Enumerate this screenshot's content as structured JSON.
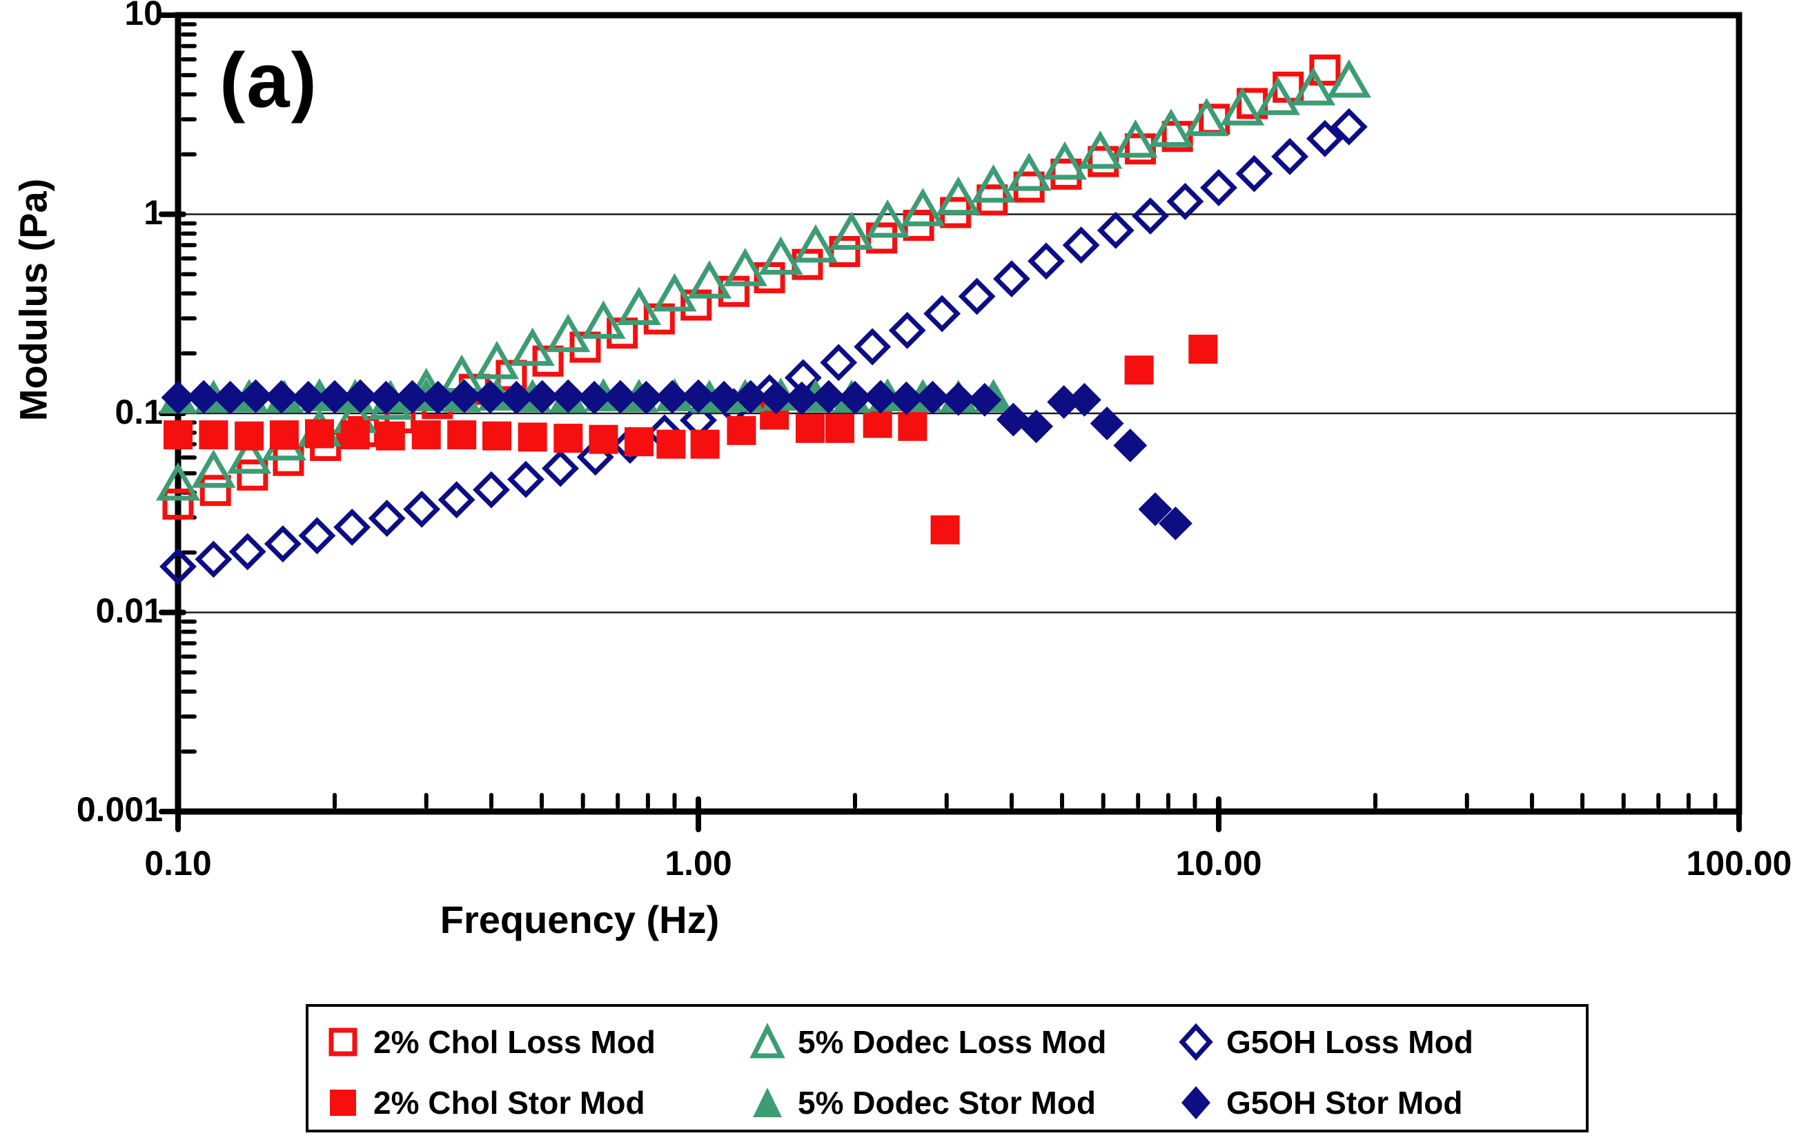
{
  "figure_label": "(a)",
  "colors": {
    "red": "#F50F0F",
    "green": "#3D9C73",
    "navy": "#0D0D84",
    "axis": "#000000",
    "grid": "#1a1a1a",
    "background": "#ffffff"
  },
  "axes": {
    "x": {
      "title": "Frequency (Hz)",
      "scale": "log",
      "min": 0.1,
      "max": 100,
      "tick_labels": [
        "0.10",
        "1.00",
        "10.00",
        "100.00"
      ],
      "tick_values": [
        0.1,
        1,
        10,
        100
      ]
    },
    "y": {
      "title": "Modulus (Pa)",
      "scale": "log",
      "min": 0.001,
      "max": 10,
      "tick_labels": [
        "10",
        "1",
        "0.1",
        "0.01",
        "0.001"
      ],
      "tick_values": [
        10,
        1,
        0.1,
        0.01,
        0.001
      ],
      "gridline_values": [
        1,
        0.1,
        0.01
      ]
    }
  },
  "legend": {
    "items": [
      {
        "label": "2% Chol Loss Mod",
        "marker": "square-open",
        "color": "red"
      },
      {
        "label": "5% Dodec Loss Mod",
        "marker": "triangle-open",
        "color": "green"
      },
      {
        "label": "G5OH Loss Mod",
        "marker": "diamond-open",
        "color": "navy"
      },
      {
        "label": "2% Chol Stor Mod",
        "marker": "square-filled",
        "color": "red"
      },
      {
        "label": "5% Dodec Stor Mod",
        "marker": "triangle-filled",
        "color": "green"
      },
      {
        "label": "G5OH Stor Mod",
        "marker": "diamond-filled",
        "color": "navy"
      }
    ]
  },
  "chart_data": {
    "type": "scatter",
    "title": "(a)",
    "xlabel": "Frequency (Hz)",
    "ylabel": "Modulus (Pa)",
    "xscale": "log",
    "yscale": "log",
    "xlim": [
      0.1,
      100
    ],
    "ylim": [
      0.001,
      10
    ],
    "grid": "horizontal-decades",
    "legend_position": "below",
    "series": [
      {
        "name": "2% Chol Loss Mod",
        "marker": "square",
        "fill": false,
        "color": "red",
        "x": [
          0.1,
          0.118,
          0.139,
          0.163,
          0.192,
          0.227,
          0.267,
          0.315,
          0.371,
          0.437,
          0.514,
          0.606,
          0.714,
          0.841,
          0.99,
          1.17,
          1.37,
          1.62,
          1.91,
          2.25,
          2.65,
          3.12,
          3.67,
          4.32,
          5.09,
          6.0,
          7.07,
          8.33,
          9.81,
          11.6,
          13.6,
          16.0
        ],
        "y": [
          0.035,
          0.041,
          0.049,
          0.058,
          0.069,
          0.081,
          0.095,
          0.112,
          0.132,
          0.155,
          0.183,
          0.215,
          0.253,
          0.298,
          0.35,
          0.41,
          0.48,
          0.56,
          0.65,
          0.76,
          0.88,
          1.02,
          1.18,
          1.37,
          1.59,
          1.84,
          2.13,
          2.46,
          3.0,
          3.6,
          4.35,
          5.3
        ]
      },
      {
        "name": "5% Dodec Loss Mod",
        "marker": "triangle",
        "fill": false,
        "color": "green",
        "x": [
          0.1,
          0.117,
          0.137,
          0.16,
          0.187,
          0.219,
          0.256,
          0.3,
          0.351,
          0.41,
          0.48,
          0.562,
          0.657,
          0.769,
          0.9,
          1.05,
          1.23,
          1.44,
          1.68,
          1.97,
          2.31,
          2.7,
          3.16,
          3.69,
          4.32,
          5.06,
          5.92,
          6.92,
          8.1,
          9.48,
          11.1,
          13.0,
          15.2,
          17.8
        ],
        "y": [
          0.044,
          0.051,
          0.06,
          0.07,
          0.082,
          0.096,
          0.112,
          0.131,
          0.153,
          0.179,
          0.209,
          0.245,
          0.286,
          0.335,
          0.392,
          0.455,
          0.525,
          0.6,
          0.69,
          0.8,
          0.92,
          1.05,
          1.2,
          1.38,
          1.58,
          1.8,
          2.04,
          2.32,
          2.63,
          2.98,
          3.37,
          3.8,
          4.25,
          4.65
        ]
      },
      {
        "name": "G5OH Loss Mod",
        "marker": "diamond",
        "fill": false,
        "color": "navy",
        "x": [
          0.1,
          0.117,
          0.136,
          0.159,
          0.185,
          0.216,
          0.252,
          0.294,
          0.343,
          0.4,
          0.466,
          0.543,
          0.634,
          0.739,
          0.861,
          1.0,
          1.17,
          1.37,
          1.59,
          1.86,
          2.16,
          2.52,
          2.94,
          3.43,
          4.0,
          4.66,
          5.44,
          6.34,
          7.39,
          8.62,
          10.0,
          11.7,
          13.7,
          16.0,
          17.8
        ],
        "y": [
          0.017,
          0.0185,
          0.0202,
          0.0221,
          0.0243,
          0.0268,
          0.0297,
          0.033,
          0.0368,
          0.0413,
          0.0466,
          0.0529,
          0.0603,
          0.0692,
          0.0797,
          0.0923,
          0.108,
          0.127,
          0.151,
          0.18,
          0.216,
          0.261,
          0.317,
          0.387,
          0.474,
          0.582,
          0.7,
          0.83,
          0.98,
          1.16,
          1.36,
          1.6,
          1.95,
          2.4,
          2.75
        ]
      },
      {
        "name": "2% Chol Stor Mod",
        "marker": "square",
        "fill": true,
        "color": "red",
        "x": [
          0.1,
          0.117,
          0.137,
          0.16,
          0.187,
          0.219,
          0.256,
          0.3,
          0.351,
          0.41,
          0.48,
          0.562,
          0.657,
          0.769,
          0.886,
          1.03,
          1.21,
          1.4,
          1.64,
          1.87,
          2.21,
          2.58,
          2.98,
          7.03,
          9.33
        ],
        "y": [
          0.078,
          0.078,
          0.077,
          0.078,
          0.079,
          0.078,
          0.077,
          0.078,
          0.078,
          0.077,
          0.076,
          0.075,
          0.074,
          0.072,
          0.07,
          0.07,
          0.082,
          0.098,
          0.084,
          0.084,
          0.089,
          0.086,
          0.026,
          0.165,
          0.21
        ]
      },
      {
        "name": "5% Dodec Stor Mod",
        "marker": "triangle",
        "fill": true,
        "color": "green",
        "x": [
          0.1,
          0.117,
          0.137,
          0.16,
          0.187,
          0.219,
          0.256,
          0.3,
          0.351,
          0.41,
          0.48,
          0.562,
          0.657,
          0.769,
          0.9,
          1.05,
          1.23,
          1.44,
          1.68,
          1.97,
          2.31,
          2.7,
          3.16,
          3.69
        ],
        "y": [
          0.118,
          0.119,
          0.12,
          0.119,
          0.121,
          0.12,
          0.119,
          0.121,
          0.12,
          0.122,
          0.12,
          0.119,
          0.121,
          0.12,
          0.121,
          0.119,
          0.12,
          0.122,
          0.12,
          0.119,
          0.121,
          0.12,
          0.119,
          0.12
        ]
      },
      {
        "name": "G5OH Stor Mod",
        "marker": "diamond",
        "fill": true,
        "color": "navy",
        "x": [
          0.1,
          0.112,
          0.126,
          0.141,
          0.158,
          0.178,
          0.2,
          0.224,
          0.251,
          0.282,
          0.316,
          0.355,
          0.398,
          0.447,
          0.501,
          0.562,
          0.631,
          0.708,
          0.794,
          0.891,
          1.0,
          1.12,
          1.26,
          1.41,
          1.58,
          1.78,
          2.0,
          2.24,
          2.51,
          2.82,
          3.16,
          3.55,
          4.03,
          4.46,
          5.04,
          5.52,
          6.1,
          6.76,
          7.55,
          8.26
        ],
        "y": [
          0.12,
          0.121,
          0.12,
          0.122,
          0.121,
          0.12,
          0.121,
          0.122,
          0.12,
          0.121,
          0.12,
          0.122,
          0.121,
          0.12,
          0.121,
          0.122,
          0.12,
          0.121,
          0.12,
          0.121,
          0.122,
          0.12,
          0.121,
          0.12,
          0.119,
          0.121,
          0.12,
          0.121,
          0.119,
          0.12,
          0.118,
          0.117,
          0.093,
          0.086,
          0.114,
          0.117,
          0.089,
          0.069,
          0.033,
          0.028
        ]
      }
    ]
  }
}
